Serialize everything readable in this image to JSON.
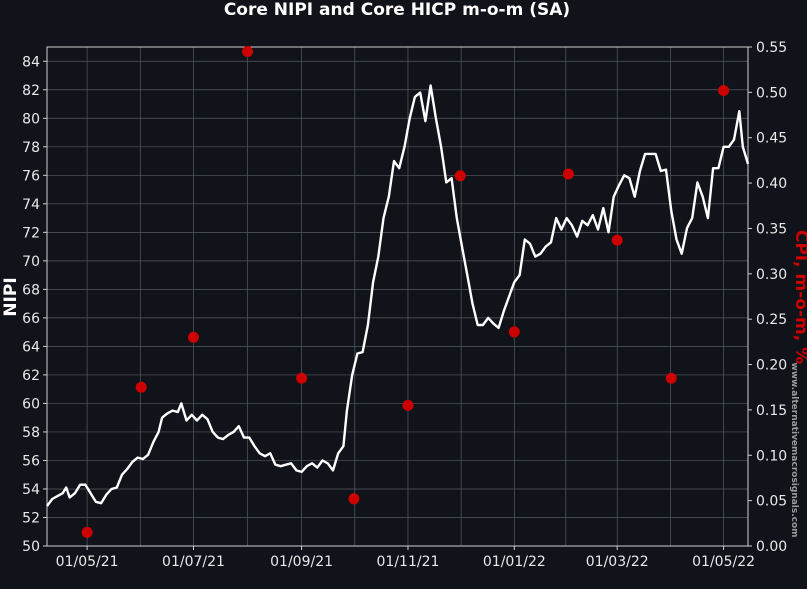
{
  "chart_data": {
    "type": "line",
    "title": "Core NIPI and Core HICP m-o-m (SA)",
    "xlabel": "",
    "ylabel_left": "NIPI",
    "ylabel_right": "CPI, m-o-m, %",
    "watermark": "www.alternativemacrosignals.com",
    "grid": true,
    "x_range": [
      "2021-04-08",
      "2022-05-15"
    ],
    "x_ticks": [
      "01/05/21",
      "01/07/21",
      "01/09/21",
      "01/11/21",
      "01/01/22",
      "01/03/22",
      "01/05/22"
    ],
    "x_tick_dates": [
      "2021-05-01",
      "2021-07-01",
      "2021-09-01",
      "2021-11-01",
      "2022-01-01",
      "2022-03-01",
      "2022-05-01"
    ],
    "y_left": {
      "lim": [
        50,
        85
      ],
      "ticks": [
        "50",
        "52",
        "54",
        "56",
        "58",
        "60",
        "62",
        "64",
        "66",
        "68",
        "70",
        "72",
        "74",
        "76",
        "78",
        "80",
        "82",
        "84"
      ]
    },
    "y_right": {
      "lim": [
        0.0,
        0.55
      ],
      "ticks": [
        "0.00",
        "0.05",
        "0.10",
        "0.15",
        "0.20",
        "0.25",
        "0.30",
        "0.35",
        "0.40",
        "0.45",
        "0.50",
        "0.55"
      ]
    },
    "series": [
      {
        "name": "",
        "axis": "left",
        "color": "#ffffff",
        "kind": "line",
        "points": [
          [
            "2021-04-08",
            52.8
          ],
          [
            "2021-04-11",
            53.3
          ],
          [
            "2021-04-14",
            53.5
          ],
          [
            "2021-04-17",
            53.7
          ],
          [
            "2021-04-19",
            54.1
          ],
          [
            "2021-04-21",
            53.4
          ],
          [
            "2021-04-24",
            53.7
          ],
          [
            "2021-04-27",
            54.3
          ],
          [
            "2021-04-30",
            54.3
          ],
          [
            "2021-05-03",
            53.7
          ],
          [
            "2021-05-06",
            53.1
          ],
          [
            "2021-05-09",
            53.0
          ],
          [
            "2021-05-12",
            53.6
          ],
          [
            "2021-05-15",
            54.0
          ],
          [
            "2021-05-18",
            54.1
          ],
          [
            "2021-05-21",
            55.0
          ],
          [
            "2021-05-24",
            55.4
          ],
          [
            "2021-05-27",
            55.9
          ],
          [
            "2021-05-30",
            56.2
          ],
          [
            "2021-06-02",
            56.1
          ],
          [
            "2021-06-05",
            56.4
          ],
          [
            "2021-06-08",
            57.3
          ],
          [
            "2021-06-11",
            58.0
          ],
          [
            "2021-06-13",
            59.0
          ],
          [
            "2021-06-16",
            59.3
          ],
          [
            "2021-06-19",
            59.5
          ],
          [
            "2021-06-22",
            59.4
          ],
          [
            "2021-06-24",
            60.0
          ],
          [
            "2021-06-27",
            58.8
          ],
          [
            "2021-06-30",
            59.2
          ],
          [
            "2021-07-03",
            58.8
          ],
          [
            "2021-07-06",
            59.2
          ],
          [
            "2021-07-09",
            58.9
          ],
          [
            "2021-07-12",
            58.0
          ],
          [
            "2021-07-15",
            57.6
          ],
          [
            "2021-07-18",
            57.5
          ],
          [
            "2021-07-21",
            57.8
          ],
          [
            "2021-07-24",
            58.0
          ],
          [
            "2021-07-27",
            58.4
          ],
          [
            "2021-07-30",
            57.6
          ],
          [
            "2021-08-02",
            57.6
          ],
          [
            "2021-08-05",
            57.0
          ],
          [
            "2021-08-08",
            56.5
          ],
          [
            "2021-08-11",
            56.3
          ],
          [
            "2021-08-14",
            56.5
          ],
          [
            "2021-08-17",
            55.7
          ],
          [
            "2021-08-20",
            55.6
          ],
          [
            "2021-08-23",
            55.7
          ],
          [
            "2021-08-26",
            55.8
          ],
          [
            "2021-08-29",
            55.3
          ],
          [
            "2021-09-01",
            55.2
          ],
          [
            "2021-09-04",
            55.6
          ],
          [
            "2021-09-07",
            55.8
          ],
          [
            "2021-09-10",
            55.5
          ],
          [
            "2021-09-13",
            56.0
          ],
          [
            "2021-09-16",
            55.8
          ],
          [
            "2021-09-19",
            55.3
          ],
          [
            "2021-09-22",
            56.5
          ],
          [
            "2021-09-25",
            57.0
          ],
          [
            "2021-09-27",
            59.5
          ],
          [
            "2021-09-30",
            62.0
          ],
          [
            "2021-10-03",
            63.5
          ],
          [
            "2021-10-06",
            63.6
          ],
          [
            "2021-10-09",
            65.5
          ],
          [
            "2021-10-12",
            68.5
          ],
          [
            "2021-10-15",
            70.3
          ],
          [
            "2021-10-18",
            73.0
          ],
          [
            "2021-10-21",
            74.5
          ],
          [
            "2021-10-24",
            77.0
          ],
          [
            "2021-10-27",
            76.5
          ],
          [
            "2021-10-30",
            78.0
          ],
          [
            "2021-11-02",
            80.0
          ],
          [
            "2021-11-05",
            81.5
          ],
          [
            "2021-11-08",
            81.8
          ],
          [
            "2021-11-11",
            79.8
          ],
          [
            "2021-11-14",
            82.3
          ],
          [
            "2021-11-17",
            80.0
          ],
          [
            "2021-11-20",
            78.0
          ],
          [
            "2021-11-23",
            75.5
          ],
          [
            "2021-11-26",
            75.8
          ],
          [
            "2021-11-29",
            73.0
          ],
          [
            "2021-12-02",
            71.0
          ],
          [
            "2021-12-05",
            69.0
          ],
          [
            "2021-12-08",
            67.0
          ],
          [
            "2021-12-11",
            65.5
          ],
          [
            "2021-12-14",
            65.5
          ],
          [
            "2021-12-17",
            66.0
          ],
          [
            "2021-12-20",
            65.6
          ],
          [
            "2021-12-23",
            65.3
          ],
          [
            "2021-12-26",
            66.5
          ],
          [
            "2021-12-29",
            67.5
          ],
          [
            "2022-01-01",
            68.5
          ],
          [
            "2022-01-04",
            69.0
          ],
          [
            "2022-01-07",
            71.5
          ],
          [
            "2022-01-10",
            71.2
          ],
          [
            "2022-01-13",
            70.3
          ],
          [
            "2022-01-16",
            70.5
          ],
          [
            "2022-01-19",
            71.0
          ],
          [
            "2022-01-22",
            71.3
          ],
          [
            "2022-01-25",
            73.0
          ],
          [
            "2022-01-28",
            72.2
          ],
          [
            "2022-01-31",
            73.0
          ],
          [
            "2022-02-03",
            72.5
          ],
          [
            "2022-02-06",
            71.7
          ],
          [
            "2022-02-09",
            72.8
          ],
          [
            "2022-02-12",
            72.5
          ],
          [
            "2022-02-15",
            73.2
          ],
          [
            "2022-02-18",
            72.2
          ],
          [
            "2022-02-21",
            73.7
          ],
          [
            "2022-02-24",
            72.0
          ],
          [
            "2022-02-27",
            74.5
          ],
          [
            "2022-03-02",
            75.3
          ],
          [
            "2022-03-05",
            76.0
          ],
          [
            "2022-03-08",
            75.8
          ],
          [
            "2022-03-11",
            74.5
          ],
          [
            "2022-03-14",
            76.3
          ],
          [
            "2022-03-17",
            77.5
          ],
          [
            "2022-03-20",
            77.5
          ],
          [
            "2022-03-23",
            77.5
          ],
          [
            "2022-03-26",
            76.3
          ],
          [
            "2022-03-29",
            76.4
          ],
          [
            "2022-04-01",
            73.5
          ],
          [
            "2022-04-04",
            71.5
          ],
          [
            "2022-04-07",
            70.5
          ],
          [
            "2022-04-10",
            72.3
          ],
          [
            "2022-04-13",
            73.0
          ],
          [
            "2022-04-16",
            75.5
          ],
          [
            "2022-04-19",
            74.5
          ],
          [
            "2022-04-22",
            73.0
          ],
          [
            "2022-04-25",
            76.5
          ],
          [
            "2022-04-28",
            76.5
          ],
          [
            "2022-05-01",
            78.0
          ],
          [
            "2022-05-04",
            78.0
          ],
          [
            "2022-05-07",
            78.5
          ],
          [
            "2022-05-10",
            80.5
          ],
          [
            "2022-05-12",
            78.0
          ],
          [
            "2022-05-15",
            76.8
          ]
        ]
      },
      {
        "name": "",
        "axis": "right",
        "color": "#cc0000",
        "kind": "scatter",
        "points": [
          [
            "2021-05-01",
            0.015
          ],
          [
            "2021-06-01",
            0.175
          ],
          [
            "2021-07-01",
            0.23
          ],
          [
            "2021-08-01",
            0.545
          ],
          [
            "2021-09-01",
            0.185
          ],
          [
            "2021-10-01",
            0.052
          ],
          [
            "2021-11-01",
            0.155
          ],
          [
            "2021-12-01",
            0.408
          ],
          [
            "2022-01-01",
            0.236
          ],
          [
            "2022-02-01",
            0.41
          ],
          [
            "2022-03-01",
            0.337
          ],
          [
            "2022-04-01",
            0.185
          ],
          [
            "2022-05-01",
            0.502
          ]
        ]
      }
    ]
  }
}
